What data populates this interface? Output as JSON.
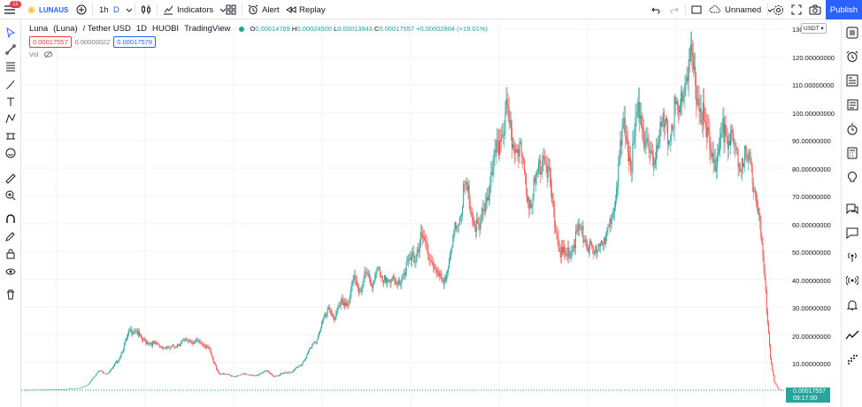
{
  "topbar": {
    "menu_badge": "11",
    "symbol": "LUNAUS",
    "interval": "1h",
    "interval_alt": "D",
    "indicators": "Indicators",
    "alert": "Alert",
    "replay": "Replay",
    "layout_name": "Unnamed",
    "publish": "Publish"
  },
  "legend": {
    "symbol_name": "Luna",
    "symbol_desc": "(Luna)",
    "pair": "/ Tether USD",
    "interval": "1D",
    "exchange": "HUOBI",
    "source": "TradingView",
    "open_label": "O",
    "open": "0.00014769",
    "high_label": "H",
    "high": "0.00024500",
    "low_label": "L",
    "low": "0.00013943",
    "close_label": "C",
    "close": "0.00017557",
    "change": "+0.00002804 (+19.01%)",
    "bid": "0.00017557",
    "spread": "0.00000022",
    "ask": "0.00017579",
    "vol_label": "Vol"
  },
  "price_axis": {
    "currency": "USDT",
    "labels": [
      "130",
      "120.00000000",
      "110.00000000",
      "100.00000000",
      "90.00000000",
      "80.00000000",
      "70.00000000",
      "60.00000000",
      "50.00000000",
      "40.00000000",
      "30.00000000",
      "20.00000000",
      "10.00000000"
    ],
    "last_price": "0.00017557",
    "countdown": "09:17:00"
  },
  "colors": {
    "up": "#26a69a",
    "down": "#ef5350",
    "accent": "#2962ff"
  },
  "chart_data": {
    "type": "candlestick",
    "y_unit": "USDT",
    "ylim": [
      0,
      130
    ],
    "grid": true,
    "anchors": [
      [
        0,
        0.1
      ],
      [
        40,
        0.3
      ],
      [
        58,
        0.8
      ],
      [
        66,
        2
      ],
      [
        72,
        5
      ],
      [
        78,
        7
      ],
      [
        86,
        6
      ],
      [
        92,
        8
      ],
      [
        98,
        11
      ],
      [
        104,
        16
      ],
      [
        110,
        21
      ],
      [
        116,
        22
      ],
      [
        122,
        18
      ],
      [
        132,
        17
      ],
      [
        142,
        16
      ],
      [
        152,
        15
      ],
      [
        162,
        17
      ],
      [
        172,
        18
      ],
      [
        182,
        17
      ],
      [
        192,
        16
      ],
      [
        198,
        10
      ],
      [
        204,
        6
      ],
      [
        212,
        5.5
      ],
      [
        222,
        5
      ],
      [
        232,
        6
      ],
      [
        242,
        5
      ],
      [
        252,
        7
      ],
      [
        262,
        5
      ],
      [
        272,
        6
      ],
      [
        282,
        7
      ],
      [
        290,
        9
      ],
      [
        298,
        14
      ],
      [
        306,
        18
      ],
      [
        312,
        24
      ],
      [
        320,
        29
      ],
      [
        326,
        26
      ],
      [
        334,
        32
      ],
      [
        340,
        31
      ],
      [
        346,
        40
      ],
      [
        352,
        36
      ],
      [
        358,
        42
      ],
      [
        364,
        38
      ],
      [
        370,
        44
      ],
      [
        376,
        38
      ],
      [
        382,
        42
      ],
      [
        390,
        37
      ],
      [
        396,
        41
      ],
      [
        402,
        45
      ],
      [
        410,
        48
      ],
      [
        416,
        54
      ],
      [
        422,
        52
      ],
      [
        428,
        46
      ],
      [
        434,
        41
      ],
      [
        440,
        40
      ],
      [
        446,
        45
      ],
      [
        452,
        58
      ],
      [
        458,
        65
      ],
      [
        462,
        72
      ],
      [
        466,
        70
      ],
      [
        472,
        60
      ],
      [
        478,
        57
      ],
      [
        484,
        68
      ],
      [
        490,
        75
      ],
      [
        496,
        85
      ],
      [
        502,
        95
      ],
      [
        506,
        100
      ],
      [
        510,
        92
      ],
      [
        514,
        88
      ],
      [
        518,
        91
      ],
      [
        522,
        83
      ],
      [
        526,
        76
      ],
      [
        530,
        68
      ],
      [
        536,
        73
      ],
      [
        540,
        80
      ],
      [
        546,
        87
      ],
      [
        550,
        78
      ],
      [
        554,
        68
      ],
      [
        558,
        58
      ],
      [
        564,
        49
      ],
      [
        570,
        48
      ],
      [
        576,
        52
      ],
      [
        582,
        58
      ],
      [
        588,
        55
      ],
      [
        594,
        51
      ],
      [
        598,
        48
      ],
      [
        602,
        52
      ],
      [
        606,
        56
      ],
      [
        610,
        52
      ],
      [
        614,
        58
      ],
      [
        620,
        70
      ],
      [
        626,
        85
      ],
      [
        630,
        94
      ],
      [
        634,
        88
      ],
      [
        638,
        82
      ],
      [
        642,
        94
      ],
      [
        646,
        102
      ],
      [
        650,
        95
      ],
      [
        654,
        86
      ],
      [
        660,
        80
      ],
      [
        664,
        90
      ],
      [
        670,
        95
      ],
      [
        676,
        92
      ],
      [
        680,
        96
      ],
      [
        684,
        102
      ],
      [
        688,
        98
      ],
      [
        692,
        110
      ],
      [
        696,
        113
      ],
      [
        700,
        118
      ],
      [
        704,
        112
      ],
      [
        708,
        105
      ],
      [
        712,
        100
      ],
      [
        716,
        92
      ],
      [
        720,
        88
      ],
      [
        724,
        86
      ],
      [
        728,
        81
      ],
      [
        732,
        90
      ],
      [
        736,
        96
      ],
      [
        740,
        91
      ],
      [
        744,
        88
      ],
      [
        748,
        85
      ],
      [
        752,
        82
      ],
      [
        756,
        86
      ],
      [
        760,
        82
      ],
      [
        764,
        80
      ],
      [
        768,
        72
      ],
      [
        772,
        62
      ],
      [
        776,
        48
      ],
      [
        780,
        30
      ],
      [
        784,
        12
      ],
      [
        788,
        3
      ],
      [
        792,
        0.5
      ],
      [
        796,
        0.0002
      ]
    ]
  }
}
